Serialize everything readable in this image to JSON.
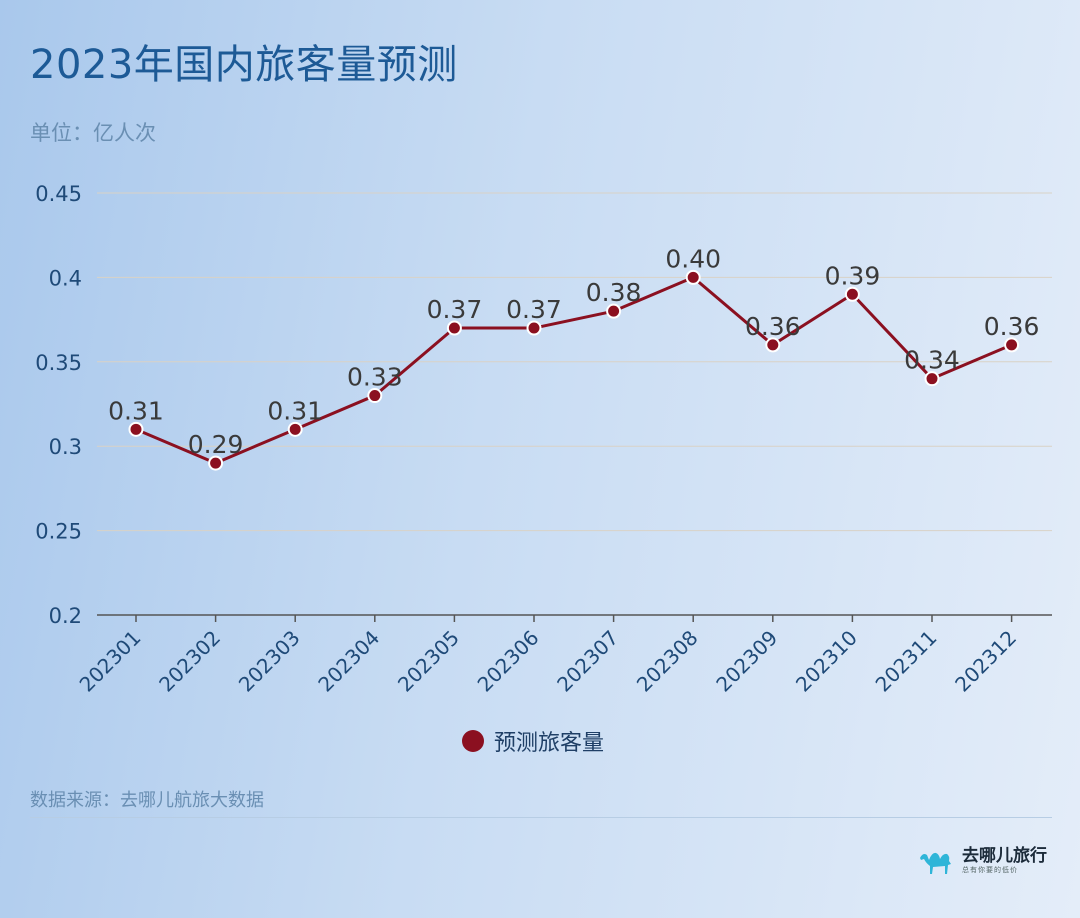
{
  "title": "2023年国内旅客量预测",
  "unit_label": "单位：亿人次",
  "source": "数据来源：去哪儿航旅大数据",
  "logo": {
    "name": "去哪儿旅行",
    "slogan": "总有你要的低价",
    "icon": "camel-icon"
  },
  "colors": {
    "series": "#8b1020",
    "title": "#1d5a96",
    "axis_text": "#1f4a78",
    "muted": "#6a8fb3"
  },
  "chart_data": {
    "type": "line",
    "categories": [
      "202301",
      "202302",
      "202303",
      "202304",
      "202305",
      "202306",
      "202307",
      "202308",
      "202309",
      "202310",
      "202311",
      "202312"
    ],
    "series": [
      {
        "name": "预测旅客量",
        "values": [
          0.31,
          0.29,
          0.31,
          0.33,
          0.37,
          0.37,
          0.38,
          0.4,
          0.36,
          0.39,
          0.34,
          0.36
        ]
      }
    ],
    "data_labels": [
      "0.31",
      "0.29",
      "0.31",
      "0.33",
      "0.37",
      "0.37",
      "0.38",
      "0.40",
      "0.36",
      "0.39",
      "0.34",
      "0.36"
    ],
    "y_ticks": [
      "0.2",
      "0.25",
      "0.3",
      "0.35",
      "0.4",
      "0.45"
    ],
    "ylim": [
      0.2,
      0.45
    ],
    "grid": true,
    "legend": "bottom"
  }
}
